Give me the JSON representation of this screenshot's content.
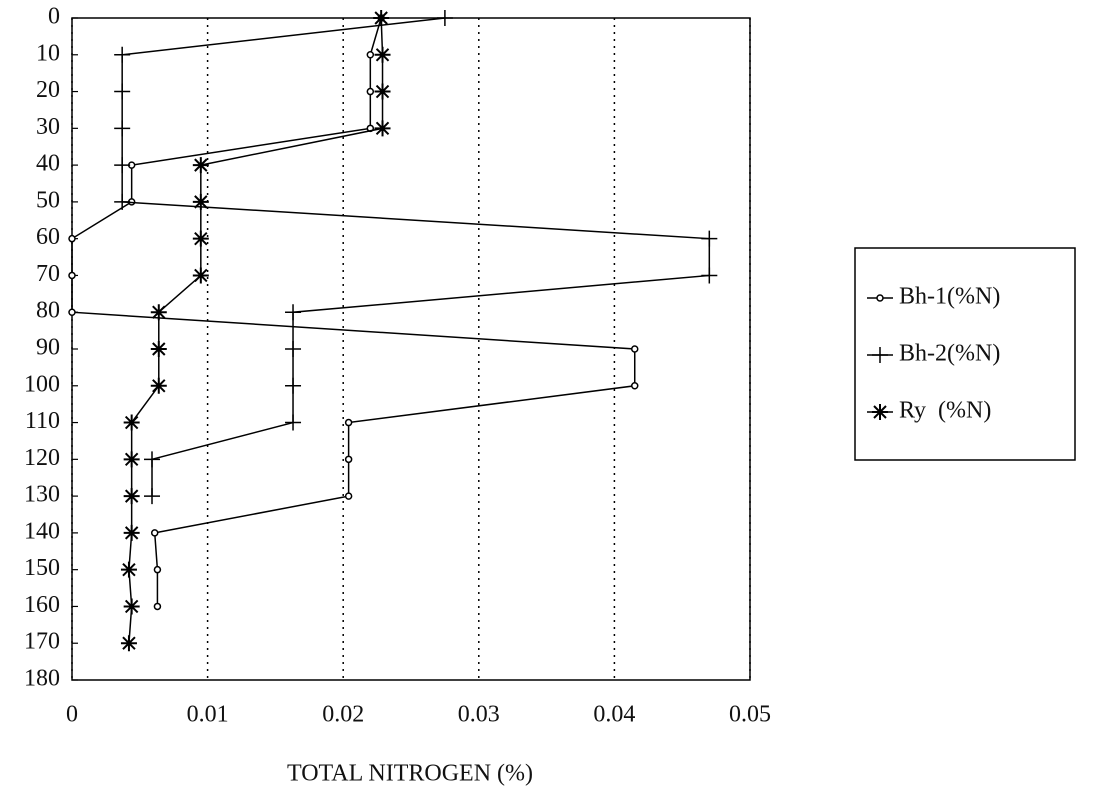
{
  "chart_data": {
    "type": "line",
    "orientation": "depth-profile",
    "xlabel": "TOTAL NITROGEN (%)",
    "y": [
      0,
      10,
      20,
      30,
      40,
      50,
      60,
      70,
      80,
      90,
      100,
      110,
      120,
      130,
      140,
      150,
      160,
      170
    ],
    "series": [
      {
        "name": "Bh-1(%N)",
        "color": "#000000",
        "marker": "circle",
        "values": [
          0.0228,
          0.022,
          0.022,
          0.022,
          0.0044,
          0.0044,
          0,
          0,
          0,
          0.0415,
          0.0415,
          0.0204,
          0.0204,
          0.0204,
          0.0061,
          0.0063,
          0.0063,
          null
        ]
      },
      {
        "name": "Bh-2(%N)",
        "color": "#000000",
        "marker": "plus",
        "values": [
          0.0275,
          0.0037,
          0.0037,
          0.0037,
          0.0037,
          0.0037,
          0.047,
          0.047,
          0.0163,
          0.0163,
          0.0163,
          0.0163,
          0.0059,
          0.0059,
          null,
          null,
          null,
          null
        ]
      },
      {
        "name": "Ry  (%N)",
        "color": "#000000",
        "marker": "star",
        "values": [
          0.0228,
          0.0229,
          0.0229,
          0.0229,
          0.0095,
          0.0095,
          0.0095,
          0.0095,
          0.0064,
          0.0064,
          0.0064,
          0.0044,
          0.0044,
          0.0044,
          0.0044,
          0.0042,
          0.0044,
          0.0042
        ]
      }
    ],
    "xlim": [
      0,
      0.05
    ],
    "xticks": [
      0,
      0.01,
      0.02,
      0.03,
      0.04,
      0.05
    ],
    "ylim": [
      0,
      180
    ],
    "yticks": [
      0,
      10,
      20,
      30,
      40,
      50,
      60,
      70,
      80,
      90,
      100,
      110,
      120,
      130,
      140,
      150,
      160,
      170,
      180
    ],
    "y_inverted": true,
    "grid": true,
    "grid_axis": "x",
    "legend": "right"
  }
}
